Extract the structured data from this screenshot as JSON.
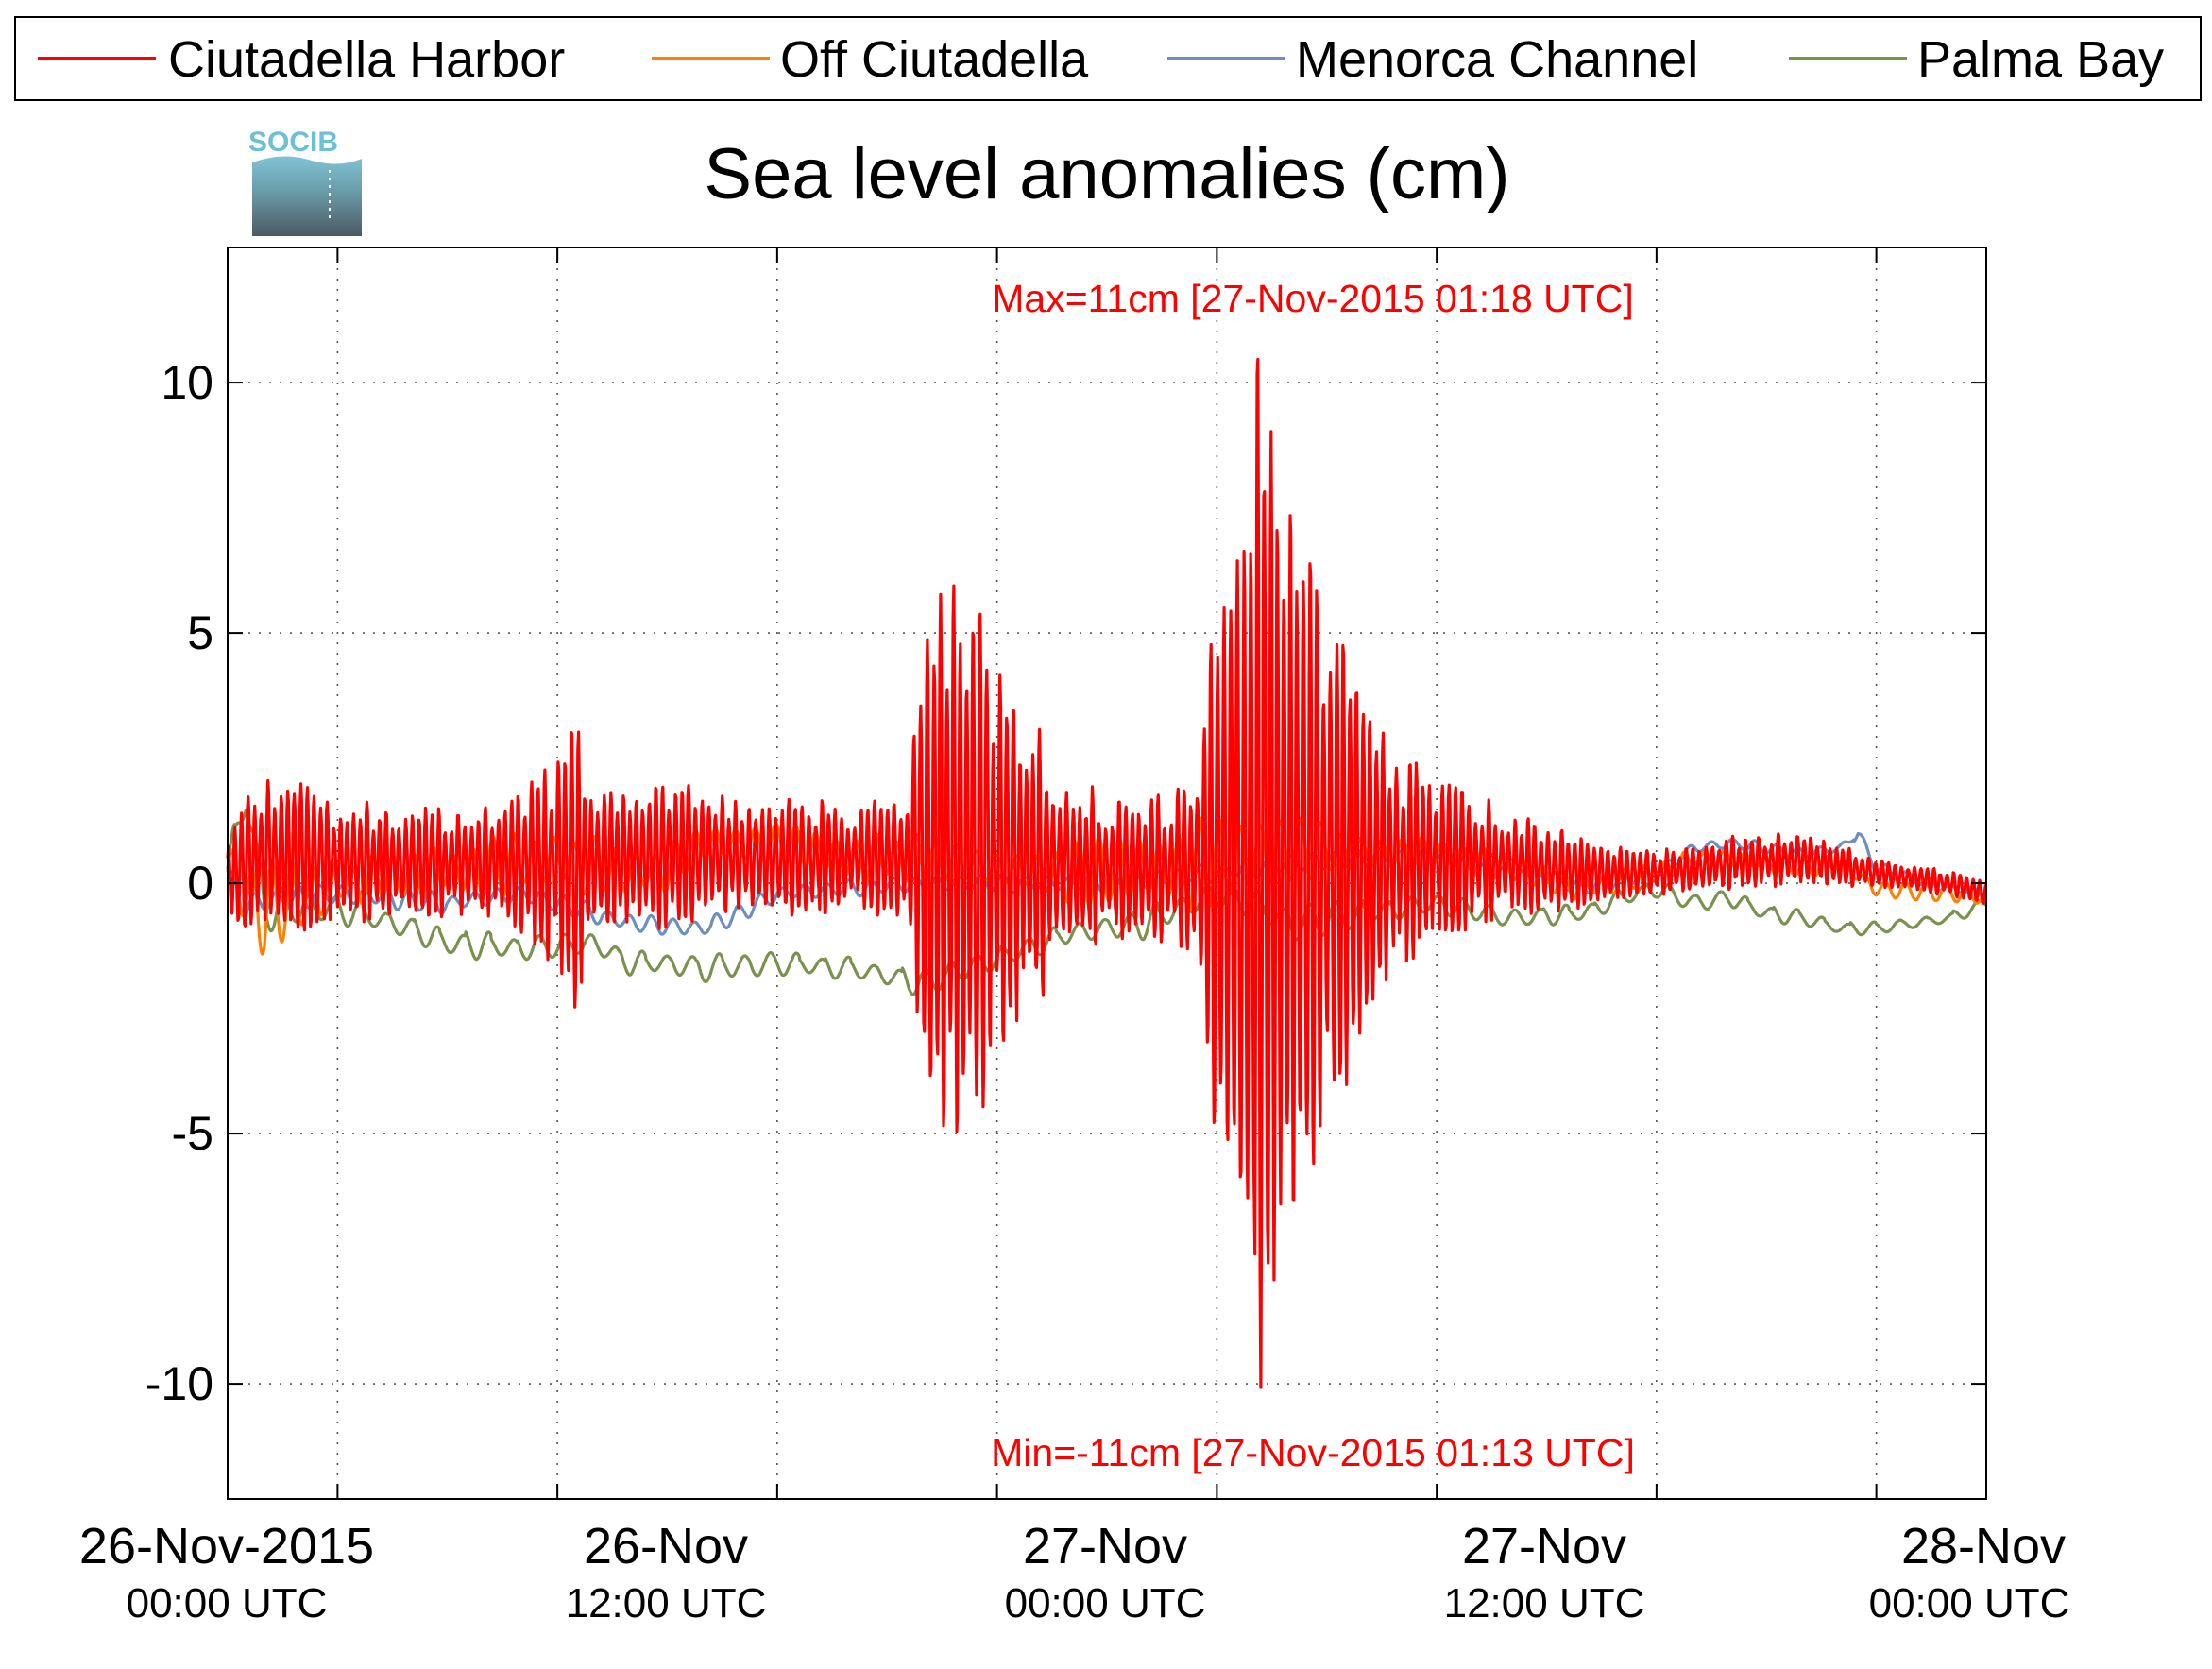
{
  "chart_data": {
    "type": "line",
    "title": "Sea level anomalies (cm)",
    "logo_text": "SOCIB",
    "ylim": [
      -12.3,
      12.7
    ],
    "yticks": [
      -10,
      -5,
      0,
      5,
      10
    ],
    "ytick_labels": [
      "-10",
      "-5",
      "0",
      "5",
      "10"
    ],
    "x_start_hours": 0,
    "x_end_hours": 48,
    "xlim_hours": [
      -3,
      45
    ],
    "xgrid_hours": [
      0,
      6,
      12,
      18,
      24,
      30,
      36,
      42
    ],
    "grid": true,
    "legend_position": "top",
    "xtick_labels": [
      {
        "line1": "26-Nov-2015",
        "line2": "00:00 UTC"
      },
      {
        "line1": "26-Nov",
        "line2": "12:00 UTC"
      },
      {
        "line1": "27-Nov",
        "line2": "00:00 UTC"
      },
      {
        "line1": "27-Nov",
        "line2": "12:00 UTC"
      },
      {
        "line1": "28-Nov",
        "line2": "00:00 UTC"
      }
    ],
    "annotations": {
      "max": "Max=11cm [27-Nov-2015 01:18 UTC]",
      "min": "Min=-11cm [27-Nov-2015 01:13 UTC]",
      "color": "#ff0000"
    },
    "series": [
      {
        "name": "Ciutadella Harbor",
        "color": "#ff0000",
        "width": 3.2,
        "baseline": [
          [
            -3,
            0.1
          ],
          [
            -2,
            0.6
          ],
          [
            0,
            0.4
          ],
          [
            3,
            0.4
          ],
          [
            6,
            0.4
          ],
          [
            8,
            0.5
          ],
          [
            10,
            0.6
          ],
          [
            12,
            0.5
          ],
          [
            15,
            0.5
          ],
          [
            18,
            0.4
          ],
          [
            21,
            0.3
          ],
          [
            24,
            0.3
          ],
          [
            27,
            0.4
          ],
          [
            30,
            0.5
          ],
          [
            32,
            0.4
          ],
          [
            34,
            0.2
          ],
          [
            36,
            0.2
          ],
          [
            38,
            0.4
          ],
          [
            40,
            0.5
          ],
          [
            42,
            0.2
          ],
          [
            44,
            0.0
          ],
          [
            45,
            -0.2
          ]
        ],
        "amp": [
          [
            -3,
            0.6
          ],
          [
            -2.5,
            1.3
          ],
          [
            -1,
            1.5
          ],
          [
            0,
            1.2
          ],
          [
            3,
            1.0
          ],
          [
            5,
            1.3
          ],
          [
            6,
            2.0
          ],
          [
            6.5,
            2.8
          ],
          [
            7,
            1.5
          ],
          [
            8,
            1.4
          ],
          [
            10,
            1.3
          ],
          [
            12,
            1.2
          ],
          [
            14,
            1.0
          ],
          [
            15.5,
            1.2
          ],
          [
            16,
            4.5
          ],
          [
            17,
            5.8
          ],
          [
            18.5,
            3.2
          ],
          [
            20,
            1.8
          ],
          [
            21,
            1.3
          ],
          [
            23.5,
            1.5
          ],
          [
            24,
            6.0
          ],
          [
            25,
            10.5
          ],
          [
            26,
            8.0
          ],
          [
            27,
            5.0
          ],
          [
            28,
            3.5
          ],
          [
            29,
            2.0
          ],
          [
            30,
            1.5
          ],
          [
            32,
            1.0
          ],
          [
            34,
            0.7
          ],
          [
            36,
            0.4
          ],
          [
            38,
            0.5
          ],
          [
            40,
            0.5
          ],
          [
            42,
            0.3
          ],
          [
            45,
            0.2
          ]
        ],
        "period_hours": 0.18
      },
      {
        "name": "Off Ciutadella",
        "color": "#ff8000",
        "width": 3.2,
        "baseline": [
          [
            -3,
            0.1
          ],
          [
            -2,
            -0.5
          ],
          [
            0,
            0.0
          ],
          [
            2,
            0.2
          ],
          [
            4,
            0.3
          ],
          [
            6,
            0.5
          ],
          [
            8,
            0.2
          ],
          [
            9,
            0.3
          ],
          [
            10,
            0.8
          ],
          [
            12,
            0.8
          ],
          [
            14,
            0.5
          ],
          [
            16,
            0.5
          ],
          [
            18,
            0.3
          ],
          [
            20,
            0.2
          ],
          [
            22,
            0.3
          ],
          [
            24,
            0.4
          ],
          [
            26,
            0.7
          ],
          [
            28,
            0.6
          ],
          [
            30,
            0.6
          ],
          [
            32,
            0.3
          ],
          [
            34,
            -0.1
          ],
          [
            36,
            0.2
          ],
          [
            37,
            0.5
          ],
          [
            38,
            0.5
          ],
          [
            40,
            0.3
          ],
          [
            41,
            0.4
          ],
          [
            42,
            -0.1
          ],
          [
            44,
            -0.2
          ],
          [
            45,
            -0.3
          ]
        ],
        "amp": [
          [
            -3,
            0.6
          ],
          [
            -2,
            0.9
          ],
          [
            0,
            0.5
          ],
          [
            6,
            0.6
          ],
          [
            8,
            0.5
          ],
          [
            12,
            0.4
          ],
          [
            16,
            0.5
          ],
          [
            18,
            0.4
          ],
          [
            24,
            0.9
          ],
          [
            25,
            0.8
          ],
          [
            28,
            0.4
          ],
          [
            32,
            0.3
          ],
          [
            36,
            0.2
          ],
          [
            40,
            0.2
          ],
          [
            45,
            0.15
          ]
        ],
        "period_hours": 0.55
      },
      {
        "name": "Menorca Channel",
        "color": "#6b8fbf",
        "width": 3.2,
        "baseline": [
          [
            -3,
            0.0
          ],
          [
            -2.5,
            -0.4
          ],
          [
            0,
            -0.2
          ],
          [
            3,
            -0.4
          ],
          [
            5,
            -0.2
          ],
          [
            6,
            -0.4
          ],
          [
            8,
            -0.8
          ],
          [
            10,
            -0.9
          ],
          [
            11,
            -0.6
          ],
          [
            12,
            -0.2
          ],
          [
            14,
            -0.1
          ],
          [
            16,
            0.0
          ],
          [
            18,
            0.0
          ],
          [
            20,
            0.0
          ],
          [
            22,
            0.1
          ],
          [
            24,
            0.2
          ],
          [
            26,
            0.4
          ],
          [
            28,
            0.5
          ],
          [
            30,
            0.6
          ],
          [
            32,
            0.4
          ],
          [
            34,
            -0.1
          ],
          [
            36,
            0.2
          ],
          [
            37,
            0.7
          ],
          [
            38,
            0.8
          ],
          [
            40,
            0.6
          ],
          [
            41,
            0.7
          ],
          [
            41.5,
            1.0
          ],
          [
            42,
            0.3
          ],
          [
            44,
            -0.1
          ],
          [
            45,
            -0.2
          ]
        ],
        "amp": [
          [
            -3,
            0.3
          ],
          [
            0,
            0.2
          ],
          [
            8,
            0.2
          ],
          [
            12,
            0.15
          ],
          [
            24,
            0.2
          ],
          [
            30,
            0.15
          ],
          [
            40,
            0.12
          ],
          [
            45,
            0.1
          ]
        ],
        "period_hours": 0.6
      },
      {
        "name": "Palma Bay",
        "color": "#7a9150",
        "width": 3.2,
        "baseline": [
          [
            -3,
            0.2
          ],
          [
            -2.5,
            1.8
          ],
          [
            -2,
            -0.5
          ],
          [
            0,
            -0.5
          ],
          [
            2,
            -0.9
          ],
          [
            3,
            -1.2
          ],
          [
            5,
            -1.3
          ],
          [
            7,
            -1.2
          ],
          [
            8,
            -1.6
          ],
          [
            9,
            -1.6
          ],
          [
            10,
            -1.7
          ],
          [
            12,
            -1.6
          ],
          [
            14,
            -1.7
          ],
          [
            16,
            -2.0
          ],
          [
            18,
            -1.5
          ],
          [
            20,
            -1.0
          ],
          [
            22,
            -0.8
          ],
          [
            24,
            -0.2
          ],
          [
            25,
            -0.4
          ],
          [
            26,
            -0.8
          ],
          [
            28,
            -0.6
          ],
          [
            30,
            -0.4
          ],
          [
            32,
            -0.7
          ],
          [
            34,
            -0.6
          ],
          [
            35,
            -0.3
          ],
          [
            36,
            -0.1
          ],
          [
            37,
            -0.4
          ],
          [
            38,
            -0.3
          ],
          [
            39,
            -0.6
          ],
          [
            40,
            -0.7
          ],
          [
            41,
            -0.9
          ],
          [
            42,
            -0.9
          ],
          [
            44,
            -0.7
          ],
          [
            45,
            -0.4
          ]
        ],
        "amp": [
          [
            -3,
            0.4
          ],
          [
            -2,
            0.5
          ],
          [
            0,
            0.3
          ],
          [
            8,
            0.25
          ],
          [
            16,
            0.25
          ],
          [
            24,
            0.35
          ],
          [
            26,
            0.35
          ],
          [
            30,
            0.2
          ],
          [
            45,
            0.12
          ]
        ],
        "period_hours": 0.7
      }
    ]
  }
}
